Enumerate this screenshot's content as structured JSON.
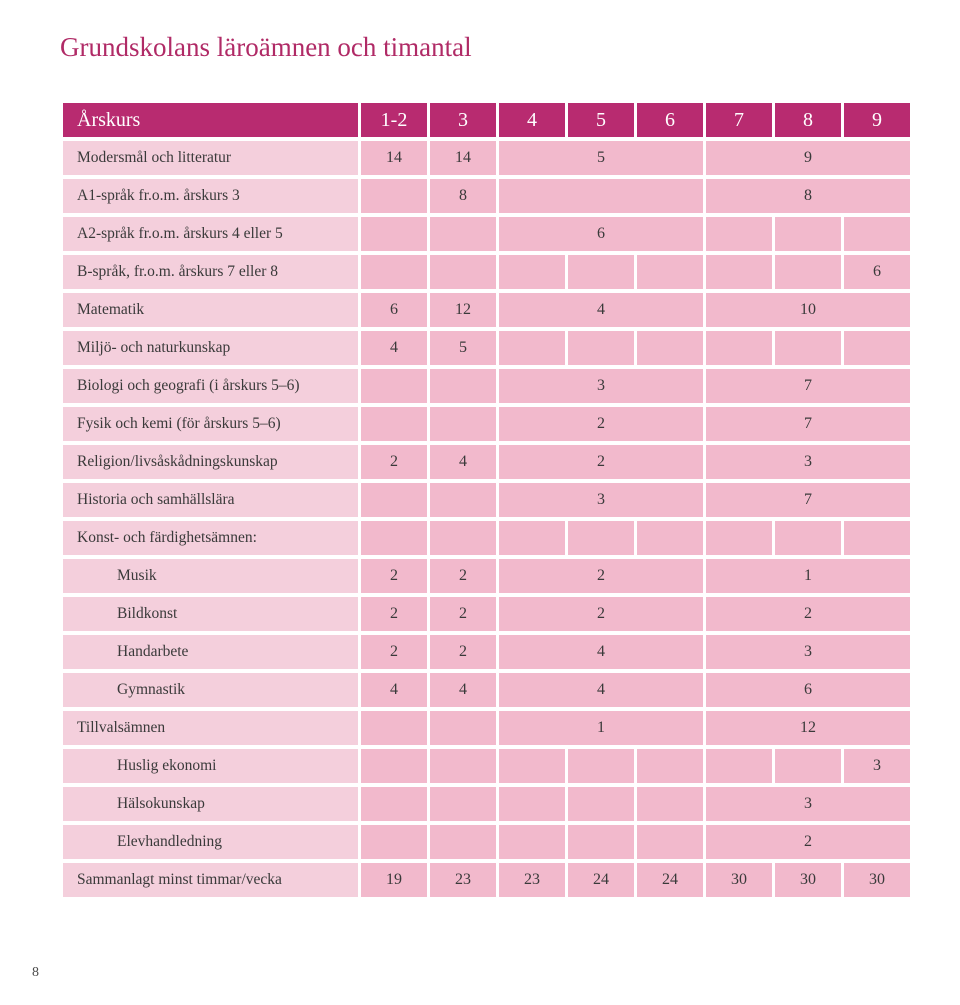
{
  "title": "Grundskolans läroämnen och timantal",
  "page_number": "8",
  "colors": {
    "title": "#b02a66",
    "header_bg": "#b82b70",
    "header_fg": "#ffffff",
    "rowlabel_bg": "#f4cfdc",
    "cell_bg": "#f2b9cc",
    "text": "#3a3a3a"
  },
  "table": {
    "header": {
      "label": "Årskurs",
      "cols": [
        "1-2",
        "3",
        "4",
        "5",
        "6",
        "7",
        "8",
        "9"
      ]
    },
    "rows": [
      {
        "label": "Modersmål och litteratur",
        "indent": false,
        "cells": [
          {
            "v": "14",
            "span": 1
          },
          {
            "v": "14",
            "span": 1
          },
          {
            "v": "5",
            "span": 3
          },
          {
            "v": "9",
            "span": 3
          }
        ]
      },
      {
        "label": "A1-språk fr.o.m. årskurs 3",
        "indent": false,
        "cells": [
          {
            "v": "",
            "span": 1
          },
          {
            "v": "8",
            "span": 1
          },
          {
            "v": "",
            "span": 3
          },
          {
            "v": "8",
            "span": 3
          }
        ]
      },
      {
        "label": "A2-språk fr.o.m. årskurs 4 eller 5",
        "indent": false,
        "cells": [
          {
            "v": "",
            "span": 1
          },
          {
            "v": "",
            "span": 1
          },
          {
            "v": "6",
            "span": 3
          },
          {
            "v": "",
            "span": 1
          },
          {
            "v": "",
            "span": 1
          },
          {
            "v": "",
            "span": 1
          }
        ]
      },
      {
        "label": "B-språk, fr.o.m. årskurs 7 eller 8",
        "indent": false,
        "cells": [
          {
            "v": "",
            "span": 1
          },
          {
            "v": "",
            "span": 1
          },
          {
            "v": "",
            "span": 1
          },
          {
            "v": "",
            "span": 1
          },
          {
            "v": "",
            "span": 1
          },
          {
            "v": "",
            "span": 1
          },
          {
            "v": "",
            "span": 1
          },
          {
            "v": "6",
            "span": 1
          }
        ]
      },
      {
        "label": "Matematik",
        "indent": false,
        "cells": [
          {
            "v": "6",
            "span": 1
          },
          {
            "v": "12",
            "span": 1
          },
          {
            "v": "4",
            "span": 3
          },
          {
            "v": "10",
            "span": 3
          }
        ]
      },
      {
        "label": "Miljö- och naturkunskap",
        "indent": false,
        "cells": [
          {
            "v": "4",
            "span": 1
          },
          {
            "v": "5",
            "span": 1
          },
          {
            "v": "",
            "span": 1
          },
          {
            "v": "",
            "span": 1
          },
          {
            "v": "",
            "span": 1
          },
          {
            "v": "",
            "span": 1
          },
          {
            "v": "",
            "span": 1
          },
          {
            "v": "",
            "span": 1
          }
        ]
      },
      {
        "label": "Biologi och geografi (i årskurs 5–6)",
        "indent": false,
        "cells": [
          {
            "v": "",
            "span": 1
          },
          {
            "v": "",
            "span": 1
          },
          {
            "v": "3",
            "span": 3
          },
          {
            "v": "7",
            "span": 3
          }
        ]
      },
      {
        "label": "Fysik och kemi (för årskurs 5–6)",
        "indent": false,
        "cells": [
          {
            "v": "",
            "span": 1
          },
          {
            "v": "",
            "span": 1
          },
          {
            "v": "2",
            "span": 3
          },
          {
            "v": "7",
            "span": 3
          }
        ]
      },
      {
        "label": "Religion/livsåskådningskunskap",
        "indent": false,
        "cells": [
          {
            "v": "2",
            "span": 1
          },
          {
            "v": "4",
            "span": 1
          },
          {
            "v": "2",
            "span": 3
          },
          {
            "v": "3",
            "span": 3
          }
        ]
      },
      {
        "label": "Historia och samhällslära",
        "indent": false,
        "cells": [
          {
            "v": "",
            "span": 1
          },
          {
            "v": "",
            "span": 1
          },
          {
            "v": "3",
            "span": 3
          },
          {
            "v": "7",
            "span": 3
          }
        ]
      },
      {
        "label": "Konst- och färdighetsämnen:",
        "indent": false,
        "cells": [
          {
            "v": "",
            "span": 1
          },
          {
            "v": "",
            "span": 1
          },
          {
            "v": "",
            "span": 1
          },
          {
            "v": "",
            "span": 1
          },
          {
            "v": "",
            "span": 1
          },
          {
            "v": "",
            "span": 1
          },
          {
            "v": "",
            "span": 1
          },
          {
            "v": "",
            "span": 1
          }
        ]
      },
      {
        "label": "Musik",
        "indent": true,
        "cells": [
          {
            "v": "2",
            "span": 1
          },
          {
            "v": "2",
            "span": 1
          },
          {
            "v": "2",
            "span": 3
          },
          {
            "v": "1",
            "span": 3
          }
        ]
      },
      {
        "label": "Bildkonst",
        "indent": true,
        "cells": [
          {
            "v": "2",
            "span": 1
          },
          {
            "v": "2",
            "span": 1
          },
          {
            "v": "2",
            "span": 3
          },
          {
            "v": "2",
            "span": 3
          }
        ]
      },
      {
        "label": "Handarbete",
        "indent": true,
        "cells": [
          {
            "v": "2",
            "span": 1
          },
          {
            "v": "2",
            "span": 1
          },
          {
            "v": "4",
            "span": 3
          },
          {
            "v": "3",
            "span": 3
          }
        ]
      },
      {
        "label": "Gymnastik",
        "indent": true,
        "cells": [
          {
            "v": "4",
            "span": 1
          },
          {
            "v": "4",
            "span": 1
          },
          {
            "v": "4",
            "span": 3
          },
          {
            "v": "6",
            "span": 3
          }
        ]
      },
      {
        "label": "Tillvalsämnen",
        "indent": false,
        "cells": [
          {
            "v": "",
            "span": 1
          },
          {
            "v": "",
            "span": 1
          },
          {
            "v": "1",
            "span": 3
          },
          {
            "v": "12",
            "span": 3
          }
        ]
      },
      {
        "label": "Huslig ekonomi",
        "indent": true,
        "cells": [
          {
            "v": "",
            "span": 1
          },
          {
            "v": "",
            "span": 1
          },
          {
            "v": "",
            "span": 1
          },
          {
            "v": "",
            "span": 1
          },
          {
            "v": "",
            "span": 1
          },
          {
            "v": "",
            "span": 1
          },
          {
            "v": "",
            "span": 1
          },
          {
            "v": "3",
            "span": 1
          }
        ]
      },
      {
        "label": "Hälsokunskap",
        "indent": true,
        "cells": [
          {
            "v": "",
            "span": 1
          },
          {
            "v": "",
            "span": 1
          },
          {
            "v": "",
            "span": 1
          },
          {
            "v": "",
            "span": 1
          },
          {
            "v": "",
            "span": 1
          },
          {
            "v": "3",
            "span": 3
          }
        ]
      },
      {
        "label": "Elevhandledning",
        "indent": true,
        "cells": [
          {
            "v": "",
            "span": 1
          },
          {
            "v": "",
            "span": 1
          },
          {
            "v": "",
            "span": 1
          },
          {
            "v": "",
            "span": 1
          },
          {
            "v": "",
            "span": 1
          },
          {
            "v": "2",
            "span": 3
          }
        ]
      },
      {
        "label": "Sammanlagt minst timmar/vecka",
        "indent": false,
        "cells": [
          {
            "v": "19",
            "span": 1
          },
          {
            "v": "23",
            "span": 1
          },
          {
            "v": "23",
            "span": 1
          },
          {
            "v": "24",
            "span": 1
          },
          {
            "v": "24",
            "span": 1
          },
          {
            "v": "30",
            "span": 1
          },
          {
            "v": "30",
            "span": 1
          },
          {
            "v": "30",
            "span": 1
          }
        ]
      }
    ]
  }
}
